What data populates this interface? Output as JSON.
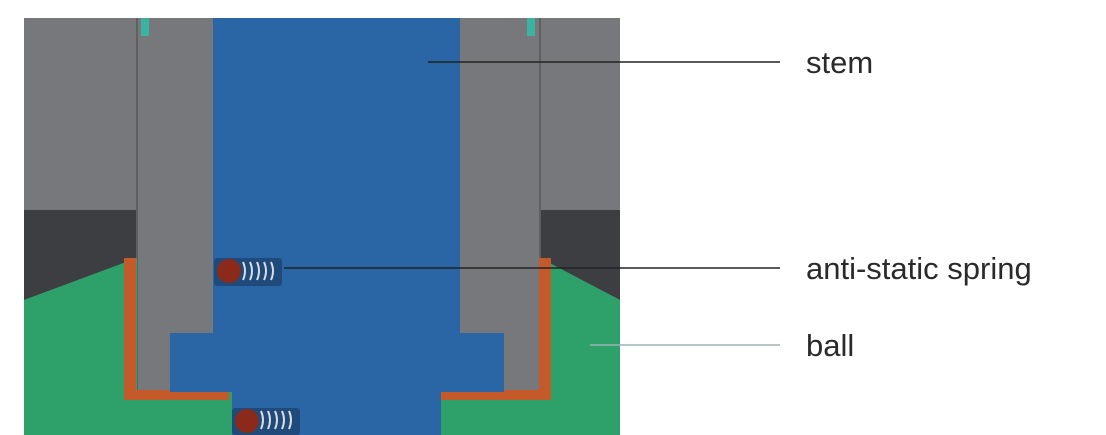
{
  "labels": {
    "stem": "stem",
    "spring": "anti-static spring",
    "ball": "ball"
  },
  "colors": {
    "housing": "#77787b",
    "housing_dark": "#3d3e41",
    "stem": "#2a66a6",
    "ball": "#2ea06a",
    "seal": "#c45a2a",
    "spring_ball": "#8b2a1a",
    "leader": "#222222"
  }
}
